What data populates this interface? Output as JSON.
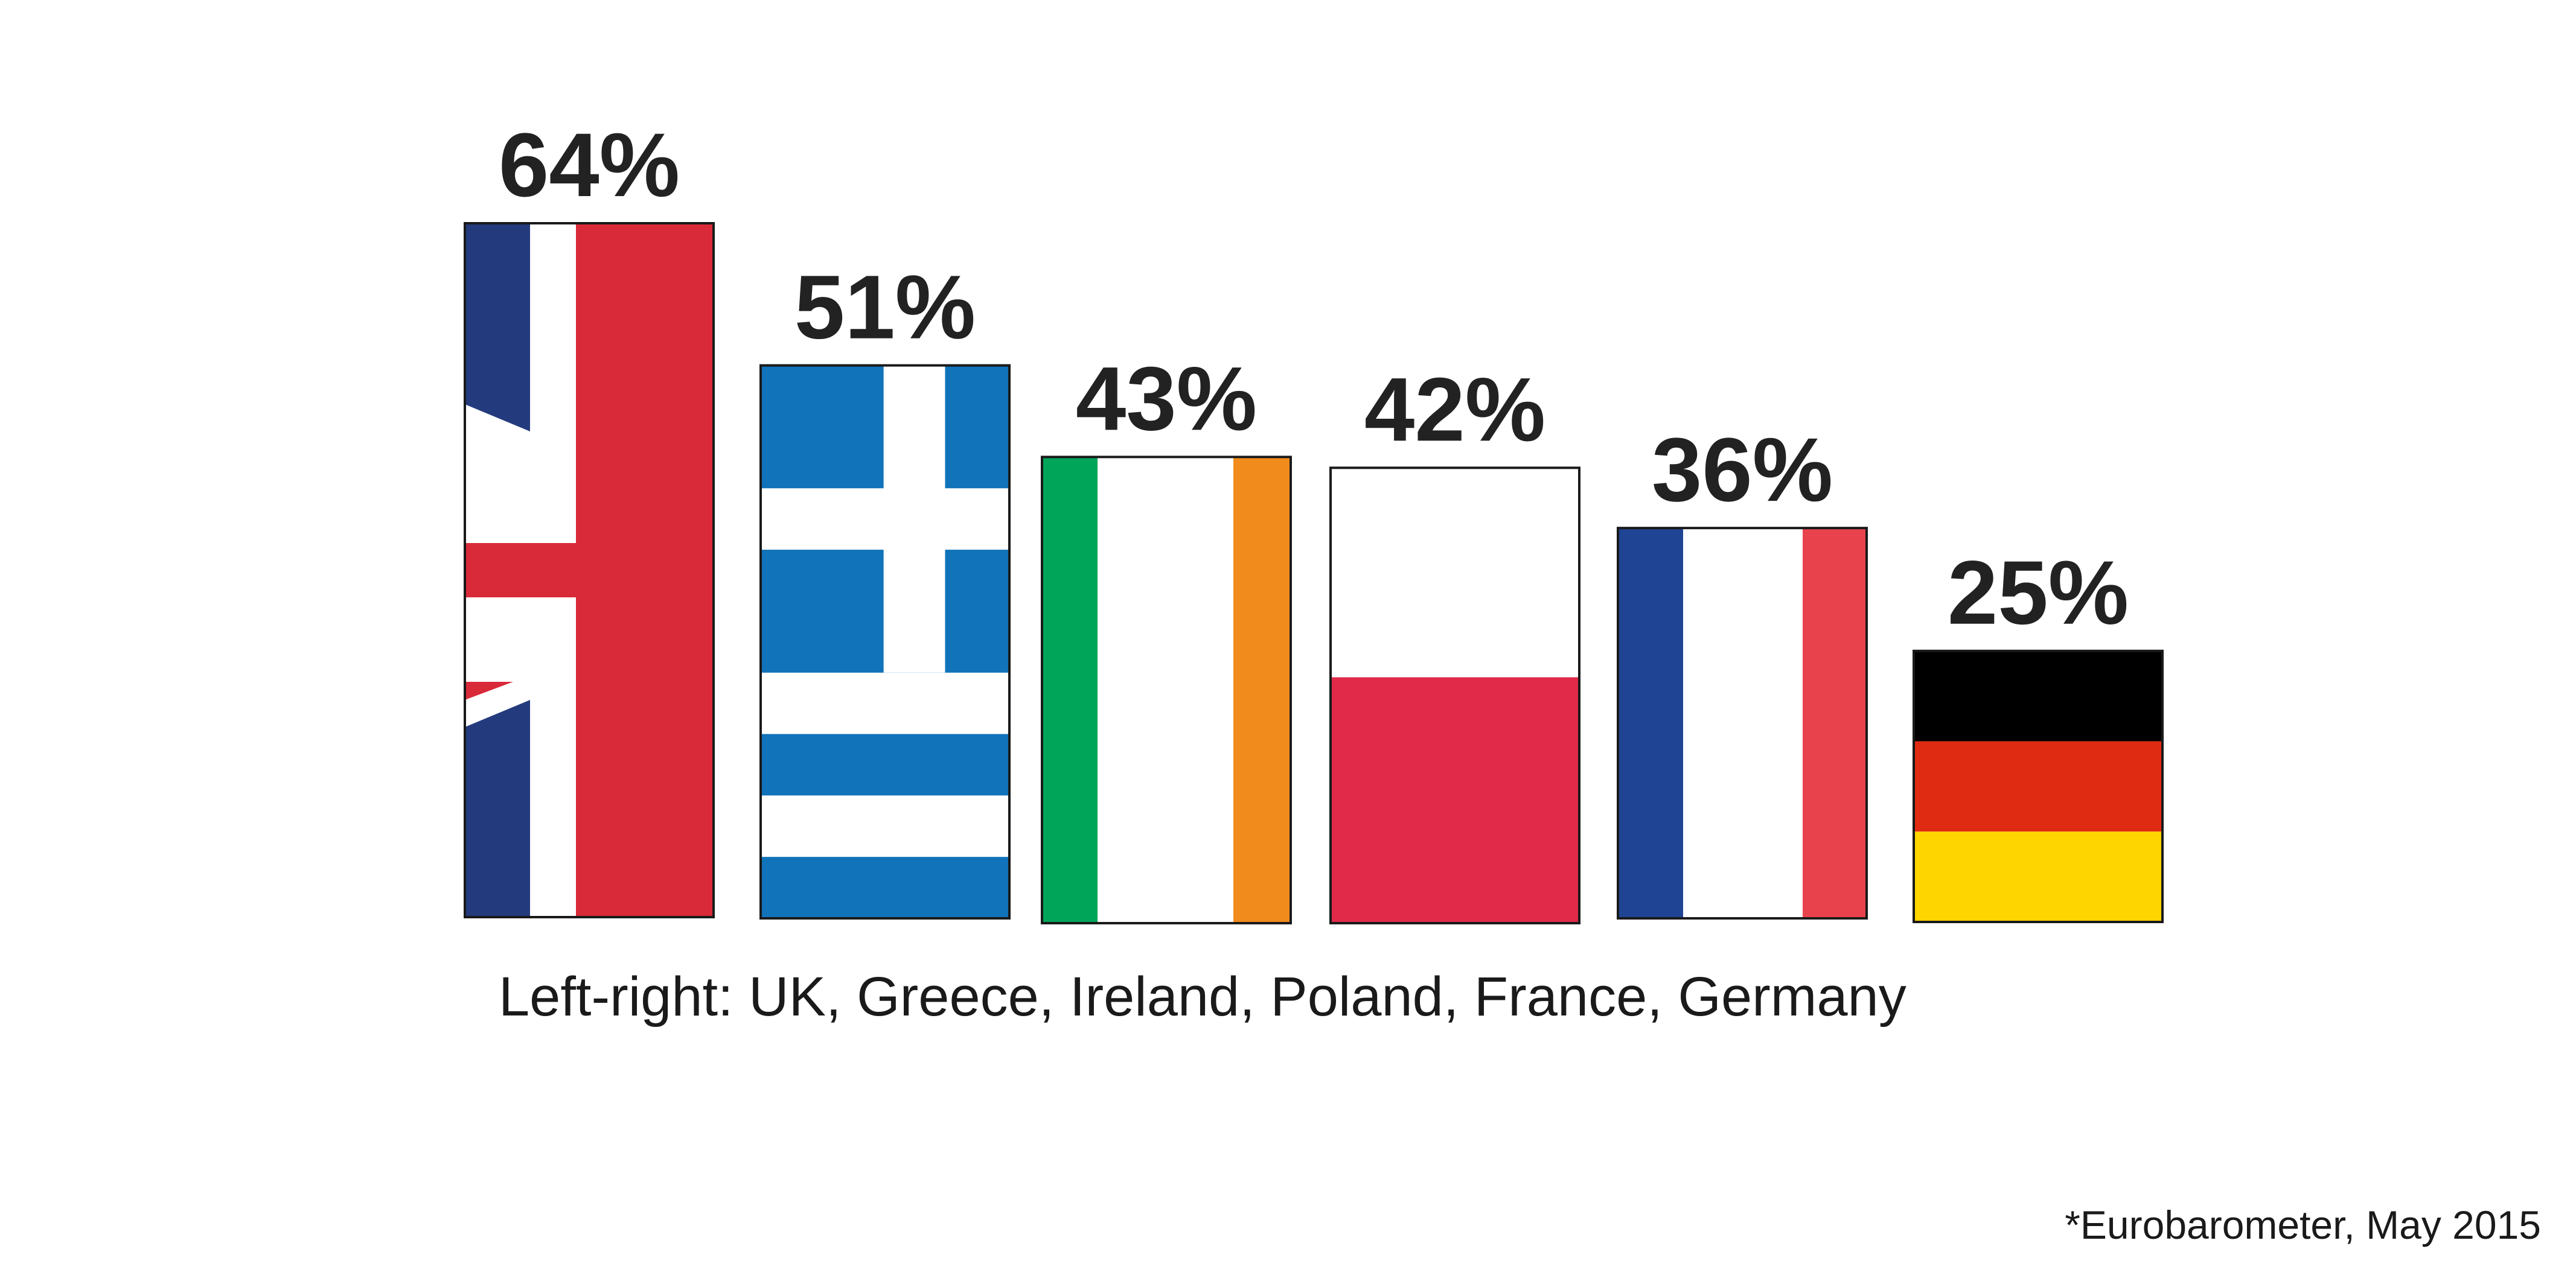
{
  "chart_data": {
    "type": "bar",
    "categories": [
      "UK",
      "Greece",
      "Ireland",
      "Poland",
      "France",
      "Germany"
    ],
    "values": [
      64,
      51,
      43,
      42,
      36,
      25
    ],
    "value_labels": [
      "64%",
      "51%",
      "43%",
      "42%",
      "36%",
      "25%"
    ],
    "value_unit": "%",
    "bar_fill": "national flag of each country",
    "ylim": [
      0,
      64
    ],
    "grid": false,
    "axes_visible": false
  },
  "caption": "Left-right: UK, Greece, Ireland, Poland, France, Germany",
  "source_note": "*Eurobarometer, May 2015",
  "colors": {
    "uk_blue": "#233b7d",
    "uk_red": "#d92a3a",
    "greece_blue": "#1173ba",
    "ireland_green": "#00a55a",
    "ireland_orange": "#f18b1c",
    "poland_red": "#e12a4a",
    "france_blue": "#1f4494",
    "france_red": "#e8434d",
    "germany_black": "#000000",
    "germany_red": "#e02b13",
    "germany_gold": "#ffd500",
    "outline": "#1a1a1a",
    "label_text": "#222222"
  }
}
